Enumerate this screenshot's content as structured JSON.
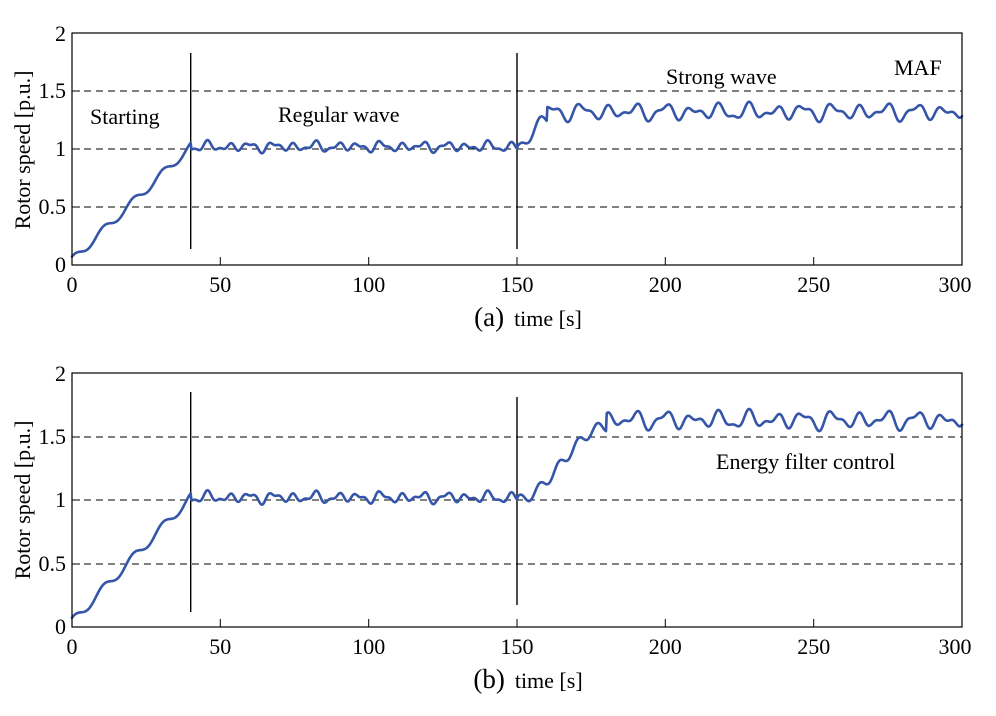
{
  "colors": {
    "series": "#3556a8",
    "axes": "#000000"
  },
  "chart_data": [
    {
      "type": "line",
      "panel_label": "(a)",
      "xlabel": "time [s]",
      "ylabel": "Rotor speed [p.u.]",
      "xlim": [
        0,
        300
      ],
      "ylim": [
        0,
        2
      ],
      "xticks": [
        "0",
        "50",
        "100",
        "150",
        "200",
        "250",
        "300"
      ],
      "yticks": [
        "0",
        "0.5",
        "1",
        "1.5",
        "2"
      ],
      "grid": {
        "horizontal_dashed_at": [
          0.5,
          1,
          1.5
        ]
      },
      "vertical_markers": [
        {
          "x": 40,
          "y_range": [
            0.12,
            1.85
          ]
        },
        {
          "x": 150,
          "y_range": [
            0.12,
            1.85
          ]
        }
      ],
      "annotations": [
        {
          "text": "Starting",
          "x": 25,
          "y": 1.3
        },
        {
          "text": "Regular wave",
          "x": 95,
          "y": 1.3
        },
        {
          "text": "Strong wave",
          "x": 210,
          "y": 1.6
        },
        {
          "text": "MAF",
          "x": 290,
          "y": 1.65
        }
      ],
      "series": [
        {
          "phases": [
            {
              "x": [
                0,
                40
              ],
              "y": [
                0.04,
                1.02
              ],
              "description_values": {
                "step_period": 10
              }
            },
            {
              "x": [
                40,
                150
              ],
              "mean": 1.02,
              "amplitude": 0.05
            },
            {
              "x": [
                150,
                160
              ],
              "y": [
                1.0,
                1.27
              ]
            },
            {
              "x": [
                160,
                300
              ],
              "mean": 1.32,
              "amplitude": 0.08
            }
          ]
        }
      ]
    },
    {
      "type": "line",
      "panel_label": "(b)",
      "xlabel": "time [s]",
      "ylabel": "Rotor speed [p.u.]",
      "xlim": [
        0,
        300
      ],
      "ylim": [
        0,
        2
      ],
      "xticks": [
        "0",
        "50",
        "100",
        "150",
        "200",
        "250",
        "300"
      ],
      "yticks": [
        "0",
        "0.5",
        "1",
        "1.5",
        "2"
      ],
      "grid": {
        "horizontal_dashed_at": [
          0.5,
          1,
          1.5
        ]
      },
      "vertical_markers": [
        {
          "x": 40,
          "y_range": [
            0.12,
            1.85
          ]
        },
        {
          "x": 150,
          "y_range": [
            0.12,
            1.85
          ]
        }
      ],
      "annotations": [
        {
          "text": "Energy filter control",
          "x": 243,
          "y": 1.3
        }
      ],
      "series": [
        {
          "phases": [
            {
              "x": [
                0,
                40
              ],
              "y": [
                0.04,
                1.02
              ],
              "description_values": {
                "step_period": 10
              }
            },
            {
              "x": [
                40,
                150
              ],
              "mean": 1.02,
              "amplitude": 0.05
            },
            {
              "x": [
                150,
                180
              ],
              "y": [
                1.0,
                1.58
              ]
            },
            {
              "x": [
                180,
                300
              ],
              "mean": 1.63,
              "amplitude": 0.08
            }
          ]
        }
      ]
    }
  ]
}
